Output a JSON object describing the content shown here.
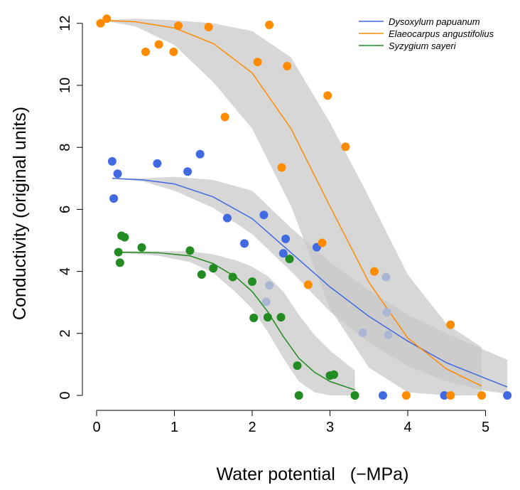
{
  "chart_data": {
    "type": "scatter",
    "title": "",
    "xlabel": "Water potential",
    "xlabel_unit": "(−MPa)",
    "ylabel": "Conductivity (original units)",
    "xlim": [
      0,
      5.3
    ],
    "ylim": [
      0,
      12.4
    ],
    "x_ticks": [
      "0",
      "1",
      "2",
      "3",
      "4",
      "5"
    ],
    "y_ticks": [
      "0",
      "2",
      "4",
      "6",
      "8",
      "10",
      "12"
    ],
    "grid": false,
    "legend_position": "top-right",
    "series": [
      {
        "name": "Dysoxylum papuanum",
        "color": "#4169E1",
        "points": [
          [
            0.2,
            7.55
          ],
          [
            0.22,
            6.35
          ],
          [
            0.27,
            7.15
          ],
          [
            0.78,
            7.48
          ],
          [
            1.17,
            7.22
          ],
          [
            1.33,
            7.78
          ],
          [
            1.68,
            5.72
          ],
          [
            1.9,
            4.9
          ],
          [
            2.15,
            5.82
          ],
          [
            2.4,
            4.58
          ],
          [
            2.43,
            5.05
          ],
          [
            2.83,
            4.78
          ],
          [
            3.68,
            0.0
          ],
          [
            4.47,
            0.0
          ],
          [
            5.28,
            0.0
          ]
        ],
        "faded_points": [
          [
            2.18,
            3.02
          ],
          [
            2.22,
            3.55
          ],
          [
            3.42,
            2.02
          ],
          [
            3.72,
            3.82
          ],
          [
            3.73,
            2.68
          ],
          [
            3.75,
            1.95
          ]
        ],
        "fit": [
          [
            0.2,
            7.0
          ],
          [
            0.6,
            6.95
          ],
          [
            1.0,
            6.82
          ],
          [
            1.5,
            6.4
          ],
          [
            2.0,
            5.7
          ],
          [
            2.5,
            4.6
          ],
          [
            3.0,
            3.5
          ],
          [
            3.5,
            2.55
          ],
          [
            4.0,
            1.75
          ],
          [
            4.5,
            1.05
          ],
          [
            5.0,
            0.55
          ],
          [
            5.28,
            0.27
          ]
        ],
        "band": [
          [
            0.2,
            7.0,
            7.0
          ],
          [
            0.6,
            6.9,
            7.0
          ],
          [
            1.0,
            6.6,
            7.05
          ],
          [
            1.5,
            6.05,
            6.95
          ],
          [
            2.0,
            5.2,
            6.6
          ],
          [
            2.5,
            4.0,
            5.4
          ],
          [
            3.0,
            2.7,
            4.3
          ],
          [
            3.5,
            1.7,
            3.4
          ],
          [
            4.0,
            0.95,
            2.6
          ],
          [
            4.5,
            0.45,
            2.0
          ],
          [
            5.0,
            0.15,
            1.45
          ],
          [
            5.28,
            0.05,
            1.15
          ]
        ]
      },
      {
        "name": "Elaeocarpus angustifolius",
        "color": "#FF8C00",
        "points": [
          [
            0.05,
            12.0
          ],
          [
            0.13,
            12.15
          ],
          [
            0.63,
            11.08
          ],
          [
            0.8,
            11.32
          ],
          [
            0.99,
            11.08
          ],
          [
            1.05,
            11.92
          ],
          [
            1.44,
            11.88
          ],
          [
            1.65,
            8.98
          ],
          [
            2.07,
            10.75
          ],
          [
            2.22,
            11.95
          ],
          [
            2.38,
            7.35
          ],
          [
            2.45,
            10.62
          ],
          [
            2.72,
            3.57
          ],
          [
            2.9,
            4.92
          ],
          [
            2.97,
            9.67
          ],
          [
            3.2,
            8.02
          ],
          [
            3.57,
            4.0
          ],
          [
            3.98,
            0.0
          ],
          [
            4.55,
            2.28
          ],
          [
            4.55,
            0.0
          ],
          [
            4.95,
            0.0
          ]
        ],
        "fit": [
          [
            0.05,
            12.1
          ],
          [
            0.5,
            12.05
          ],
          [
            1.0,
            11.85
          ],
          [
            1.5,
            11.35
          ],
          [
            2.0,
            10.4
          ],
          [
            2.5,
            8.6
          ],
          [
            3.0,
            6.1
          ],
          [
            3.5,
            3.65
          ],
          [
            4.0,
            1.85
          ],
          [
            4.5,
            0.85
          ],
          [
            4.95,
            0.3
          ]
        ],
        "band": [
          [
            0.05,
            12.1,
            12.1
          ],
          [
            0.5,
            11.9,
            12.15
          ],
          [
            1.0,
            11.3,
            12.1
          ],
          [
            1.5,
            10.1,
            12.0
          ],
          [
            2.0,
            8.6,
            11.75
          ],
          [
            2.5,
            6.1,
            10.9
          ],
          [
            3.0,
            2.8,
            8.8
          ],
          [
            3.5,
            0.9,
            6.4
          ],
          [
            4.0,
            0.1,
            3.9
          ],
          [
            4.5,
            0.0,
            2.3
          ],
          [
            4.95,
            0.0,
            1.55
          ]
        ]
      },
      {
        "name": "Syzygium sayeri",
        "color": "#228B22",
        "points": [
          [
            0.28,
            4.62
          ],
          [
            0.3,
            4.28
          ],
          [
            0.32,
            5.15
          ],
          [
            0.36,
            5.1
          ],
          [
            0.58,
            4.77
          ],
          [
            1.2,
            4.67
          ],
          [
            1.35,
            3.9
          ],
          [
            1.5,
            4.1
          ],
          [
            1.75,
            3.82
          ],
          [
            2.0,
            3.67
          ],
          [
            2.02,
            2.5
          ],
          [
            2.2,
            2.52
          ],
          [
            2.37,
            2.52
          ],
          [
            2.48,
            4.4
          ],
          [
            2.58,
            0.96
          ],
          [
            2.6,
            0.0
          ],
          [
            3.0,
            0.64
          ],
          [
            3.05,
            0.67
          ],
          [
            3.32,
            0.0
          ]
        ],
        "fit": [
          [
            0.3,
            4.62
          ],
          [
            0.8,
            4.6
          ],
          [
            1.2,
            4.5
          ],
          [
            1.5,
            4.25
          ],
          [
            1.8,
            3.8
          ],
          [
            2.0,
            3.35
          ],
          [
            2.2,
            2.7
          ],
          [
            2.4,
            1.9
          ],
          [
            2.6,
            1.2
          ],
          [
            2.8,
            0.75
          ],
          [
            3.0,
            0.45
          ],
          [
            3.32,
            0.18
          ]
        ],
        "band": [
          [
            0.3,
            4.6,
            4.65
          ],
          [
            0.8,
            4.5,
            4.65
          ],
          [
            1.2,
            4.3,
            4.65
          ],
          [
            1.5,
            3.95,
            4.55
          ],
          [
            1.8,
            3.3,
            4.35
          ],
          [
            2.0,
            2.8,
            4.15
          ],
          [
            2.2,
            2.05,
            3.85
          ],
          [
            2.4,
            1.2,
            3.35
          ],
          [
            2.6,
            0.45,
            2.6
          ],
          [
            2.8,
            0.1,
            1.95
          ],
          [
            3.0,
            0.0,
            1.45
          ],
          [
            3.32,
            0.0,
            0.8
          ]
        ]
      }
    ]
  }
}
